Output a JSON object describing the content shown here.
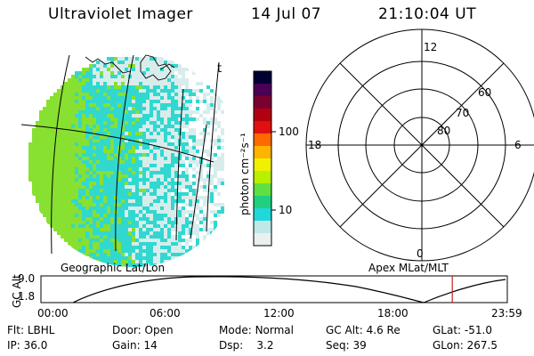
{
  "header": {
    "instrument": "Ultraviolet Imager",
    "date": "14 Jul 07",
    "time": "21:10:04 UT"
  },
  "left_map": {
    "label": "Geographic Lat/Lon",
    "corner_mark": "t"
  },
  "colorbar": {
    "unit_label": "photon cm⁻²s⁻¹",
    "ticks": [
      "100",
      "10"
    ],
    "colors": [
      "#000033",
      "#4a0055",
      "#7a0030",
      "#b20010",
      "#e01010",
      "#ff6a00",
      "#ffb400",
      "#f0f000",
      "#b8f000",
      "#60e040",
      "#20d080",
      "#20d8d8",
      "#c0e8e8",
      "#e8f0f0"
    ]
  },
  "right_map": {
    "label": "Apex MLat/MLT",
    "mlt_labels": {
      "top": "12",
      "bottom": "0",
      "left": "18",
      "right": "6"
    },
    "mlat_labels": [
      "60",
      "70",
      "80"
    ]
  },
  "orbit_plot": {
    "ylabel": "GC Alt",
    "yticks": [
      "9.0",
      "1.8"
    ],
    "xticks": [
      "00:00",
      "06:00",
      "12:00",
      "18:00",
      "23:59"
    ],
    "marker_color": "#cc2020",
    "marker_hours": 21.17
  },
  "info": {
    "row1": [
      {
        "label": "Flt:",
        "value": "LBHL"
      },
      {
        "label": "Door:",
        "value": "Open"
      },
      {
        "label": "Mode:",
        "value": "Normal"
      },
      {
        "label": "GC Alt:",
        "value": "4.6 Re"
      },
      {
        "label": "GLat:",
        "value": "-51.0"
      }
    ],
    "row2": [
      {
        "label": "IP:",
        "value": "36.0"
      },
      {
        "label": "Gain:",
        "value": "14"
      },
      {
        "label": "Dsp:",
        "value": "3.2"
      },
      {
        "label": "Seq:",
        "value": "39"
      },
      {
        "label": "GLon:",
        "value": "267.5"
      }
    ]
  },
  "colors": {
    "green": "#88e030",
    "cyan": "#30d8d0",
    "pale": "#d8ecec"
  }
}
